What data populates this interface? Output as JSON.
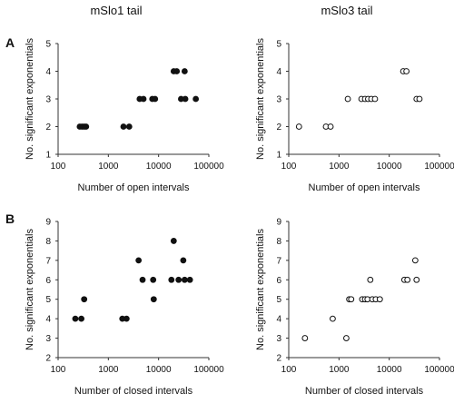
{
  "column_titles": [
    "mSlo1 tail",
    "mSlo3 tail"
  ],
  "row_labels": [
    "A",
    "B"
  ],
  "chart_data": [
    {
      "type": "scatter",
      "panel": "A-left",
      "xlabel": "Number of open intervals",
      "ylabel": "No. significant exponentials",
      "xscale": "log",
      "xlim": [
        100,
        100000
      ],
      "ylim": [
        1,
        5
      ],
      "xticks": [
        "100",
        "1000",
        "10000",
        "100000"
      ],
      "yticks": [
        "1",
        "2",
        "3",
        "4",
        "5"
      ],
      "marker": "filled",
      "points": [
        {
          "x": 270,
          "y": 2
        },
        {
          "x": 300,
          "y": 2
        },
        {
          "x": 330,
          "y": 2
        },
        {
          "x": 360,
          "y": 2
        },
        {
          "x": 2000,
          "y": 2
        },
        {
          "x": 2600,
          "y": 2
        },
        {
          "x": 4200,
          "y": 3
        },
        {
          "x": 5000,
          "y": 3
        },
        {
          "x": 7500,
          "y": 3
        },
        {
          "x": 8500,
          "y": 3
        },
        {
          "x": 20000,
          "y": 4
        },
        {
          "x": 23000,
          "y": 4
        },
        {
          "x": 33000,
          "y": 4
        },
        {
          "x": 28000,
          "y": 3
        },
        {
          "x": 34000,
          "y": 3
        },
        {
          "x": 55000,
          "y": 3
        }
      ]
    },
    {
      "type": "scatter",
      "panel": "A-right",
      "xlabel": "Number of open intervals",
      "ylabel": "No. significant exponentials",
      "xscale": "log",
      "xlim": [
        100,
        100000
      ],
      "ylim": [
        1,
        5
      ],
      "xticks": [
        "100",
        "1000",
        "10000",
        "100000"
      ],
      "yticks": [
        "1",
        "2",
        "3",
        "4",
        "5"
      ],
      "marker": "open",
      "points": [
        {
          "x": 160,
          "y": 2
        },
        {
          "x": 550,
          "y": 2
        },
        {
          "x": 680,
          "y": 2
        },
        {
          "x": 1500,
          "y": 3
        },
        {
          "x": 2800,
          "y": 3
        },
        {
          "x": 3300,
          "y": 3
        },
        {
          "x": 3800,
          "y": 3
        },
        {
          "x": 4400,
          "y": 3
        },
        {
          "x": 5200,
          "y": 3
        },
        {
          "x": 19000,
          "y": 4
        },
        {
          "x": 22000,
          "y": 4
        },
        {
          "x": 35000,
          "y": 3
        },
        {
          "x": 40000,
          "y": 3
        }
      ]
    },
    {
      "type": "scatter",
      "panel": "B-left",
      "xlabel": "Number of closed intervals",
      "ylabel": "No. significant exponentials",
      "xscale": "log",
      "xlim": [
        100,
        100000
      ],
      "ylim": [
        2,
        9
      ],
      "xticks": [
        "100",
        "1000",
        "10000",
        "100000"
      ],
      "yticks": [
        "2",
        "3",
        "4",
        "5",
        "6",
        "7",
        "8",
        "9"
      ],
      "marker": "filled",
      "points": [
        {
          "x": 220,
          "y": 4
        },
        {
          "x": 290,
          "y": 4
        },
        {
          "x": 330,
          "y": 5
        },
        {
          "x": 1900,
          "y": 4
        },
        {
          "x": 2300,
          "y": 4
        },
        {
          "x": 4000,
          "y": 7
        },
        {
          "x": 4800,
          "y": 6
        },
        {
          "x": 7800,
          "y": 6
        },
        {
          "x": 8000,
          "y": 5
        },
        {
          "x": 18000,
          "y": 6
        },
        {
          "x": 20000,
          "y": 8
        },
        {
          "x": 25000,
          "y": 6
        },
        {
          "x": 31000,
          "y": 7
        },
        {
          "x": 33000,
          "y": 6
        },
        {
          "x": 42000,
          "y": 6
        }
      ]
    },
    {
      "type": "scatter",
      "panel": "B-right",
      "xlabel": "Number of closed intervals",
      "ylabel": "No. significant exponentials",
      "xscale": "log",
      "xlim": [
        100,
        100000
      ],
      "ylim": [
        2,
        9
      ],
      "xticks": [
        "100",
        "1000",
        "10000",
        "100000"
      ],
      "yticks": [
        "2",
        "3",
        "4",
        "5",
        "6",
        "7",
        "8",
        "9"
      ],
      "marker": "open",
      "points": [
        {
          "x": 210,
          "y": 3
        },
        {
          "x": 750,
          "y": 4
        },
        {
          "x": 1400,
          "y": 3
        },
        {
          "x": 1600,
          "y": 5
        },
        {
          "x": 1750,
          "y": 5
        },
        {
          "x": 2900,
          "y": 5
        },
        {
          "x": 3300,
          "y": 5
        },
        {
          "x": 3700,
          "y": 5
        },
        {
          "x": 4200,
          "y": 6
        },
        {
          "x": 4600,
          "y": 5
        },
        {
          "x": 5400,
          "y": 5
        },
        {
          "x": 6500,
          "y": 5
        },
        {
          "x": 20000,
          "y": 6
        },
        {
          "x": 23000,
          "y": 6
        },
        {
          "x": 33000,
          "y": 7
        },
        {
          "x": 35000,
          "y": 6
        }
      ]
    }
  ]
}
